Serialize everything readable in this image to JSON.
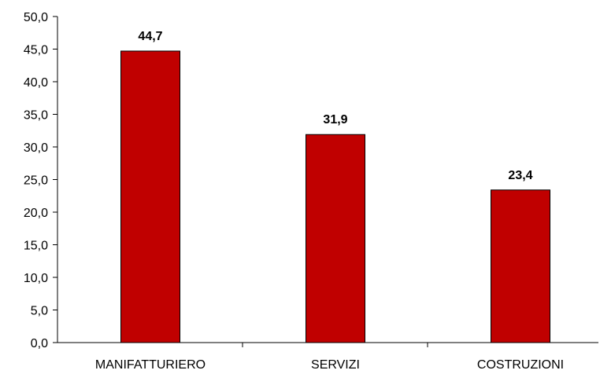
{
  "chart_data": {
    "type": "bar",
    "categories": [
      "MANIFATTURIERO",
      "SERVIZI",
      "COSTRUZIONI"
    ],
    "values": [
      44.7,
      31.9,
      23.4
    ],
    "data_labels": [
      "44,7",
      "31,9",
      "23,4"
    ],
    "yticks": [
      0,
      5,
      10,
      15,
      20,
      25,
      30,
      35,
      40,
      45,
      50
    ],
    "ytick_labels": [
      "0,0",
      "5,0",
      "10,0",
      "15,0",
      "20,0",
      "25,0",
      "30,0",
      "35,0",
      "40,0",
      "45,0",
      "50,0"
    ],
    "ylim": [
      0,
      50
    ],
    "grid": false,
    "legend": "none",
    "bar_color": "#C00000",
    "bar_edge_color": "#000000"
  }
}
